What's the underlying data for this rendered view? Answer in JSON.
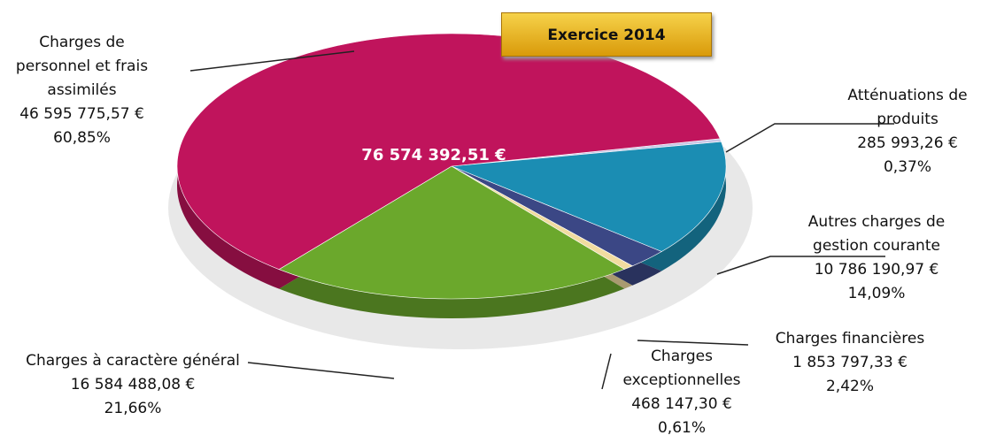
{
  "chart_data": {
    "type": "pie",
    "title": "Exercice 2014",
    "total_label": "76 574 392,51 €",
    "categories": [
      "Atténuations de produits",
      "Autres charges de gestion courante",
      "Charges financières",
      "Charges exceptionnelles",
      "Charges à caractère général",
      "Charges de personnel et frais assimilés"
    ],
    "values": [
      0.37,
      14.09,
      2.42,
      0.61,
      21.66,
      60.85
    ],
    "value_labels": [
      "0,37%",
      "14,09%",
      "2,42%",
      "0,61%",
      "21,66%",
      "60,85%"
    ],
    "amount_labels": [
      "285 993,26 €",
      "10 786 190,97 €",
      "1 853 797,33 €",
      "468 147,30 €",
      "16 584 488,08 €",
      "46 595 775,57 €"
    ],
    "colors": [
      "#c9c6e6",
      "#1b8db3",
      "#3b4785",
      "#f1dca0",
      "#6ba82c",
      "#c0145c"
    ]
  }
}
